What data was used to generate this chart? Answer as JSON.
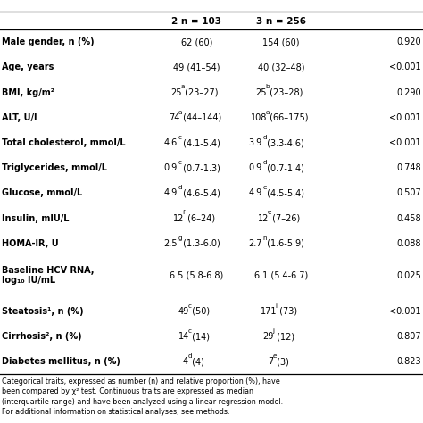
{
  "col_headers": [
    "",
    "2 n = 103",
    "3 n = 256",
    ""
  ],
  "rows": [
    {
      "label": "Male gender, n (%)",
      "col2": "62 (60)",
      "col3": "154 (60)",
      "pval": "0.920"
    },
    {
      "label": "Age, years",
      "col2": "49 (41–54)",
      "col3": "40 (32–48)",
      "pval": "<0.001"
    },
    {
      "label": "BMI, kg/m²",
      "col2_base": "25",
      "col2_sup": "a",
      "col2_rest": " (23–27)",
      "col3_base": "25",
      "col3_sup": "b",
      "col3_rest": " (23–28)",
      "pval": "0.290"
    },
    {
      "label": "ALT, U/l",
      "col2_base": "74",
      "col2_sup": "a",
      "col2_rest": " (44–144)",
      "col3_base": "108",
      "col3_sup": "a",
      "col3_rest": " (66–175)",
      "pval": "<0.001"
    },
    {
      "label": "Total cholesterol, mmol/L",
      "col2_base": "4.6",
      "col2_sup": "c",
      "col2_rest": " (4.1-5.4)",
      "col3_base": "3.9",
      "col3_sup": "d",
      "col3_rest": " (3.3-4.6)",
      "pval": "<0.001"
    },
    {
      "label": "Triglycerides, mmol/L",
      "col2_base": "0.9",
      "col2_sup": "c",
      "col2_rest": " (0.7-1.3)",
      "col3_base": "0.9",
      "col3_sup": "d",
      "col3_rest": " (0.7-1.4)",
      "pval": "0.748"
    },
    {
      "label": "Glucose, mmol/L",
      "col2_base": "4.9",
      "col2_sup": "d",
      "col2_rest": " (4.6-5.4)",
      "col3_base": "4.9",
      "col3_sup": "e",
      "col3_rest": " (4.5-5.4)",
      "pval": "0.507"
    },
    {
      "label": "Insulin, mIU/L",
      "col2_base": "12",
      "col2_sup": "f",
      "col2_rest": " (6–24)",
      "col3_base": "12",
      "col3_sup": "e",
      "col3_rest": " (7–26)",
      "pval": "0.458"
    },
    {
      "label": "HOMA-IR, U",
      "col2_base": "2.5",
      "col2_sup": "g",
      "col2_rest": " (1.3-6.0)",
      "col3_base": "2.7",
      "col3_sup": "h",
      "col3_rest": " (1.6-5.9)",
      "pval": "0.088"
    },
    {
      "label": "Baseline HCV RNA,\nlog₁₀ IU/mL",
      "col2": "6.5 (5.8-6.8)",
      "col3": "6.1 (5.4-6.7)",
      "pval": "0.025",
      "multiline": true
    },
    {
      "label": "Steatosis¹, n (%)",
      "col2_base": "49",
      "col2_sup": "c",
      "col2_rest": " (50)",
      "col3_base": "171",
      "col3_sup": "i",
      "col3_rest": " (73)",
      "pval": "<0.001"
    },
    {
      "label": "Cirrhosis², n (%)",
      "col2_base": "14",
      "col2_sup": "c",
      "col2_rest": " (14)",
      "col3_base": "29",
      "col3_sup": "j",
      "col3_rest": " (12)",
      "pval": "0.807"
    },
    {
      "label": "Diabetes mellitus, n (%)",
      "col2_base": "4",
      "col2_sup": "d",
      "col2_rest": " (4)",
      "col3_base": "7",
      "col3_sup": "e",
      "col3_rest": " (3)",
      "pval": "0.823"
    }
  ],
  "footnote": "Categorical traits, expressed as number (n) and relative proportion (%), have\nbeen compared by χ² test. Continuous traits are expressed as median\n(interquartile range) and have been analyzed using a linear regression model.\nFor additional information on statistical analyses, see methods.",
  "bg_color": "#ffffff",
  "text_color": "#000000"
}
